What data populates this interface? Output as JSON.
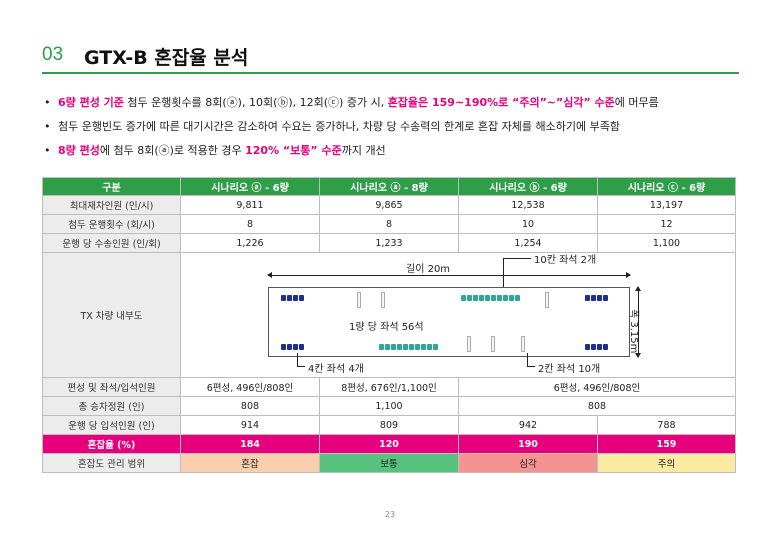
{
  "section": {
    "number": "03",
    "title": "GTX-B 혼잡율 분석"
  },
  "bullets": [
    {
      "segments": [
        {
          "text": "6량 편성 기준",
          "hl": true
        },
        {
          "text": " 첨두 운행횟수를 8회(ⓐ), 10회(ⓑ), 12회(ⓒ) 증가 시, ",
          "hl": false
        },
        {
          "text": "혼잡율은 159~190%로 “주의”~”심각” 수준",
          "hl": true
        },
        {
          "text": "에 머무름",
          "hl": false
        }
      ]
    },
    {
      "segments": [
        {
          "text": "첨두 운행빈도 증가에 따른 대기시간은 감소하여 수요는 증가하나, 차량 당 수송력의 한계로 혼잡 자체를 해소하기에 부족함",
          "hl": false
        }
      ]
    },
    {
      "segments": [
        {
          "text": "8량 편성",
          "hl": true
        },
        {
          "text": "에 첨두 8회(ⓐ)로 적용한 경우 ",
          "hl": false
        },
        {
          "text": "120% “보통” 수준",
          "hl": true
        },
        {
          "text": "까지 개선",
          "hl": false
        }
      ]
    }
  ],
  "table": {
    "headers": [
      "구분",
      "시나리오 ⓐ - 6량",
      "시나리오 ⓐ - 8량",
      "시나리오 ⓑ - 6량",
      "시나리오 ⓒ - 6량"
    ],
    "rows_top": [
      {
        "label": "최대재차인원 (인/시)",
        "values": [
          "9,811",
          "9,865",
          "12,538",
          "13,197"
        ]
      },
      {
        "label": "첨두 운행횟수 (회/시)",
        "values": [
          "8",
          "8",
          "10",
          "12"
        ]
      },
      {
        "label": "운행 당 수송인원 (인/회)",
        "values": [
          "1,226",
          "1,233",
          "1,254",
          "1,100"
        ]
      }
    ],
    "diagram_label": "TX 차량 내부도",
    "formation": {
      "label": "편성 및 좌석/입석인원",
      "a6": "6편성, 496인/808인",
      "a8": "8편성, 676인/1,100인",
      "bc": "6편성, 496인/808인"
    },
    "capacity": {
      "label": "총 승차정원 (인)",
      "a6": "808",
      "a8": "1,100",
      "bc": "808"
    },
    "standing": {
      "label": "운행 당 입석인원 (인)",
      "values": [
        "914",
        "809",
        "942",
        "788"
      ]
    },
    "congestion": {
      "label": "혼잡율 (%)",
      "values": [
        "184",
        "120",
        "190",
        "159"
      ]
    },
    "level": {
      "label": "혼잡도 관리 범위",
      "values": [
        "혼잡",
        "보통",
        "심각",
        "주의"
      ]
    }
  },
  "diagram": {
    "length_label": "길이 20m",
    "width_label": "폭 3.15m",
    "seats_10": "10칸 좌석 2개",
    "seats_center": "1량 당 좌석 56석",
    "seats_4": "4칸 좌석 4개",
    "seats_2": "2칸 좌석 10개"
  },
  "colors": {
    "accent": "#2e9e48",
    "highlight": "#e6007e",
    "seat": "#1f2f8f",
    "seat_alt": "#2ea79a"
  },
  "page_number": "23"
}
